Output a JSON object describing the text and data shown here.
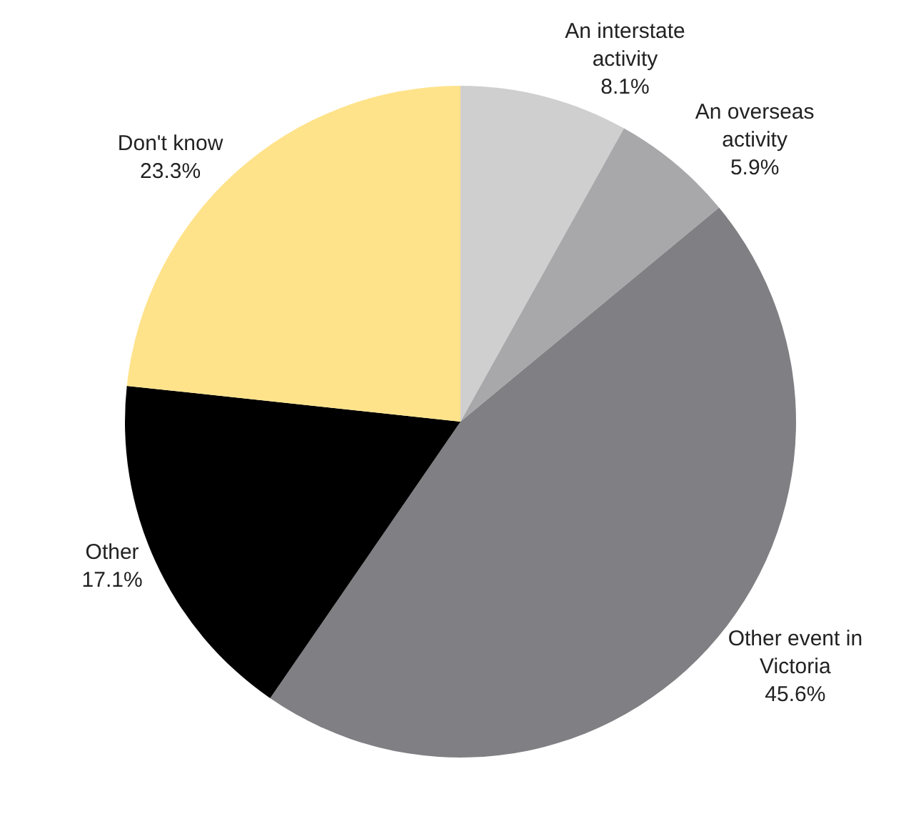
{
  "chart_data": {
    "type": "pie",
    "categories": [
      "An interstate\nactivity",
      "An overseas\nactivity",
      "Other event in\nVictoria",
      "Other",
      "Don't know"
    ],
    "values": [
      8.1,
      5.9,
      45.6,
      17.1,
      23.3
    ],
    "colors": [
      "#cfcfcf",
      "#a8a8aa",
      "#807f83",
      "#000000",
      "#ffe38b"
    ],
    "value_labels": [
      "8.1%",
      "5.9%",
      "45.6%",
      "17.1%",
      "23.3%"
    ],
    "legend": false
  }
}
